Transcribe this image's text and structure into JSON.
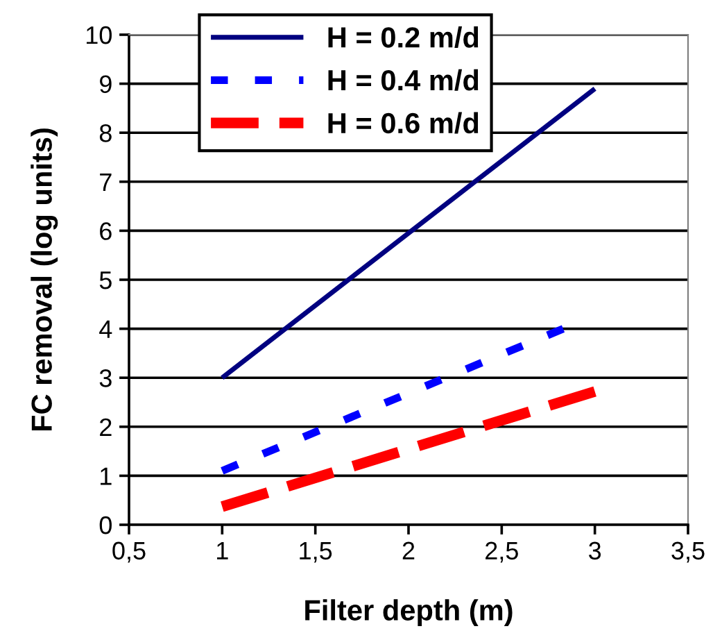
{
  "chart_data": {
    "type": "line",
    "xlabel": "Filter depth (m)",
    "ylabel": "FC removal (log units)",
    "xlim": [
      0.5,
      3.5
    ],
    "xticks": [
      {
        "value": 0.5,
        "label": "0,5"
      },
      1,
      {
        "value": 1.5,
        "label": "1,5"
      },
      2,
      {
        "value": 2.5,
        "label": "2,5"
      },
      3,
      {
        "value": 3.5,
        "label": "3,5"
      }
    ],
    "ylim": [
      0,
      10
    ],
    "yticks": [
      0,
      1,
      2,
      3,
      4,
      5,
      6,
      7,
      8,
      9,
      10
    ],
    "grid": "y",
    "legend": "top left",
    "series": [
      {
        "name": "H = 0.2 m/d",
        "color": "#000080",
        "line_style": "solid",
        "x": [
          1,
          3
        ],
        "values": [
          3.0,
          8.9
        ]
      },
      {
        "name": "H = 0.4 m/d",
        "color": "#0000ff",
        "line_style": "dotted",
        "x": [
          1,
          2.83
        ],
        "values": [
          1.1,
          4.0
        ]
      },
      {
        "name": "H = 0.6 m/d",
        "color": "#ff0000",
        "line_style": "dashed",
        "x": [
          1,
          3
        ],
        "values": [
          0.37,
          2.72
        ]
      }
    ]
  }
}
